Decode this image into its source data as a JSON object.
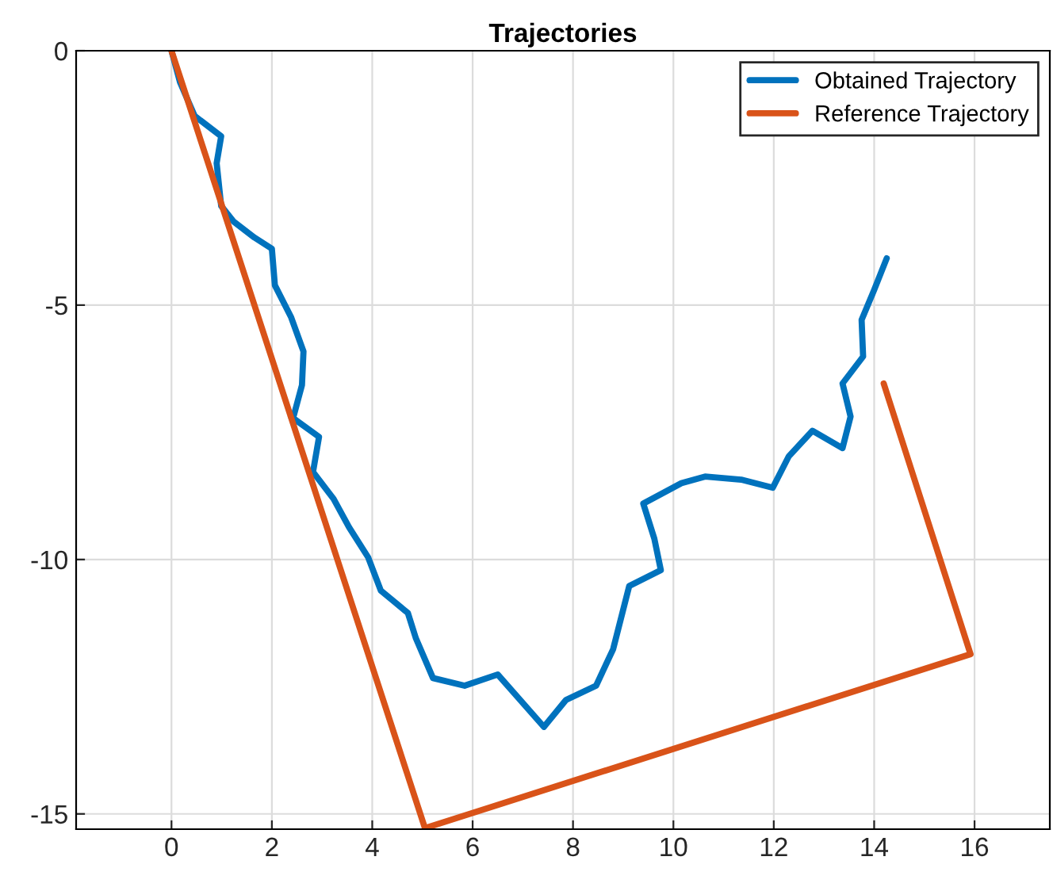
{
  "chart_data": {
    "type": "line",
    "title": "Trajectories",
    "xlim": [
      -1.9,
      17.5
    ],
    "ylim": [
      -15.3,
      0
    ],
    "xticks": [
      0,
      2,
      4,
      6,
      8,
      10,
      12,
      14,
      16
    ],
    "yticks": [
      -15,
      -10,
      -5,
      0
    ],
    "grid": true,
    "legend": "top right",
    "series": [
      {
        "name": "Obtained Trajectory",
        "color": "#0072bd",
        "x": [
          0,
          0.17,
          0.46,
          0.99,
          0.9,
          0.99,
          1.24,
          1.65,
          2.0,
          2.06,
          2.38,
          2.63,
          2.6,
          2.44,
          2.38,
          2.94,
          2.82,
          3.23,
          3.54,
          3.92,
          4.17,
          4.71,
          4.87,
          5.21,
          5.84,
          6.5,
          7.42,
          7.86,
          8.46,
          8.8,
          9.12,
          9.75,
          9.62,
          9.4,
          10.16,
          10.63,
          11.35,
          11.98,
          12.3,
          12.77,
          13.37,
          13.53,
          13.37,
          13.78,
          13.75,
          14.0,
          14.25
        ],
        "values": [
          0,
          -0.62,
          -1.28,
          -1.68,
          -2.21,
          -3.05,
          -3.36,
          -3.67,
          -3.89,
          -4.61,
          -5.23,
          -5.91,
          -6.57,
          -7.16,
          -7.19,
          -7.59,
          -8.28,
          -8.81,
          -9.37,
          -9.96,
          -10.61,
          -11.05,
          -11.55,
          -12.33,
          -12.48,
          -12.26,
          -13.29,
          -12.76,
          -12.48,
          -11.76,
          -10.52,
          -10.21,
          -9.59,
          -8.9,
          -8.5,
          -8.37,
          -8.43,
          -8.59,
          -7.97,
          -7.47,
          -7.81,
          -7.19,
          -6.54,
          -6.01,
          -5.29,
          -4.7,
          -4.08
        ]
      },
      {
        "name": "Reference Trajectory",
        "color": "#d95319",
        "x": [
          0,
          5.05,
          15.92,
          14.19
        ],
        "values": [
          0,
          -15.28,
          -11.86,
          -6.54
        ]
      }
    ]
  }
}
